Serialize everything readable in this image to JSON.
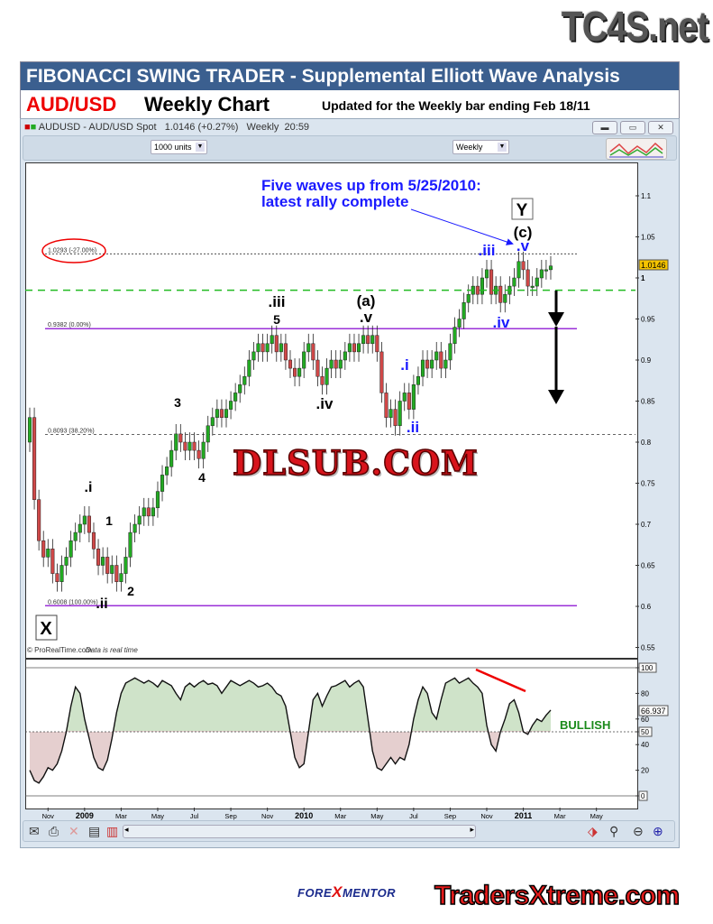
{
  "logo_top": "TC4S.net",
  "header": {
    "title": "FIBONACCI SWING TRADER - Supplemental Elliott Wave Analysis",
    "pair": "AUD/USD",
    "chart_type": "Weekly Chart",
    "updated": "Updated for the Weekly bar ending Feb 18/11"
  },
  "window": {
    "title": "AUDUSD - AUD/USD Spot   1.0146 (+0.27%)   Weekly  20:59",
    "units_select": "1000 units",
    "period_select": "Weekly",
    "credit": "© ProRealTime.com",
    "credit_note": "Data is real time",
    "icons": [
      "candlestick-icon",
      "minimize-icon",
      "restore-icon",
      "close-icon",
      "indicators-icon",
      "mail-icon",
      "print-icon",
      "delete-icon",
      "export-icon",
      "compare-icon",
      "scroll-left-icon",
      "scroll-right-icon",
      "cursor-icon",
      "zoom-fit-icon",
      "zoom-out-icon",
      "zoom-in-icon"
    ]
  },
  "footer": {
    "brand1_a": "FORE",
    "brand1_x": "X",
    "brand1_b": "MENTOR",
    "brand2": "TradersXtreme.com"
  },
  "watermark": "DLSUB.COM",
  "colors": {
    "up": "#22aa22",
    "down": "#d04848",
    "fib_purple": "#9b30d8",
    "support_green": "#22bb22",
    "wave_blue": "#1a1aff",
    "bullish": "#1a8a1a"
  },
  "chart_data": [
    {
      "type": "candlestick",
      "title": "AUDUSD - AUD/USD Spot",
      "period": "Weekly",
      "x_range": [
        "Oct 2008",
        "May 2011"
      ],
      "x_tick_labels": [
        "Nov",
        "2009",
        "Mar",
        "May",
        "Jul",
        "Sep",
        "Nov",
        "2010",
        "Mar",
        "May",
        "Jul",
        "Sep",
        "Nov",
        "2011",
        "Mar",
        "May"
      ],
      "y_tick_labels": [
        "1.1",
        "1.05",
        "1",
        "0.95",
        "0.9",
        "0.85",
        "0.8",
        "0.75",
        "0.7",
        "0.65",
        "0.6",
        "0.55"
      ],
      "ylim": [
        0.535,
        1.135
      ],
      "last_price": "1.0146",
      "closes": [
        0.83,
        0.73,
        0.68,
        0.66,
        0.67,
        0.64,
        0.63,
        0.65,
        0.66,
        0.68,
        0.69,
        0.7,
        0.71,
        0.69,
        0.67,
        0.65,
        0.66,
        0.64,
        0.65,
        0.63,
        0.64,
        0.66,
        0.69,
        0.7,
        0.71,
        0.72,
        0.71,
        0.72,
        0.74,
        0.76,
        0.77,
        0.79,
        0.81,
        0.8,
        0.79,
        0.8,
        0.79,
        0.78,
        0.8,
        0.82,
        0.83,
        0.84,
        0.83,
        0.84,
        0.85,
        0.86,
        0.87,
        0.88,
        0.9,
        0.91,
        0.92,
        0.91,
        0.92,
        0.93,
        0.91,
        0.92,
        0.9,
        0.89,
        0.88,
        0.89,
        0.91,
        0.92,
        0.9,
        0.88,
        0.87,
        0.89,
        0.9,
        0.89,
        0.9,
        0.91,
        0.92,
        0.91,
        0.92,
        0.93,
        0.92,
        0.93,
        0.91,
        0.86,
        0.83,
        0.84,
        0.82,
        0.85,
        0.86,
        0.84,
        0.87,
        0.88,
        0.9,
        0.89,
        0.9,
        0.91,
        0.89,
        0.9,
        0.92,
        0.94,
        0.95,
        0.97,
        0.98,
        0.99,
        0.98,
        1.0,
        1.01,
        0.98,
        0.99,
        0.97,
        0.98,
        0.99,
        1.0,
        1.02,
        1.01,
        0.99,
        0.99,
        1.0,
        1.01,
        1.01,
        1.0146
      ],
      "fib_levels": [
        {
          "value": 1.0293,
          "label": "1.0293 (-27.00%)",
          "style": "dotted",
          "circled": true
        },
        {
          "value": 0.9382,
          "label": "0.9382 (0.00%)",
          "style": "solid-purple"
        },
        {
          "value": 0.8093,
          "label": "0.8093 (38.20%)",
          "style": "dashed"
        },
        {
          "value": 0.6008,
          "label": "0.6008 (100.00%)",
          "style": "solid-purple"
        }
      ],
      "support_line": 0.985,
      "annotation_headline": [
        "Five waves up from 5/25/2010:",
        "latest rally complete"
      ],
      "wave_labels": [
        ".i",
        "1",
        "2",
        ".ii",
        "3",
        "4",
        ".iii",
        "5",
        ".iv",
        "(a)",
        ".v",
        ".i",
        ".ii",
        ".iii",
        ".iv",
        "(c)",
        ".v",
        "Y",
        "X"
      ]
    },
    {
      "type": "line",
      "y_tick_labels": [
        "100",
        "80",
        "60",
        "50",
        "40",
        "20",
        "0"
      ],
      "ylim": [
        0,
        100
      ],
      "threshold": 50,
      "last_value": "66.937",
      "signal_label": "BULLISH",
      "values": [
        20,
        12,
        10,
        15,
        22,
        20,
        25,
        35,
        50,
        70,
        85,
        80,
        60,
        45,
        30,
        22,
        20,
        28,
        45,
        65,
        80,
        88,
        90,
        92,
        90,
        88,
        90,
        88,
        85,
        90,
        88,
        86,
        80,
        75,
        85,
        88,
        85,
        88,
        90,
        87,
        88,
        86,
        80,
        85,
        90,
        88,
        86,
        88,
        90,
        88,
        85,
        86,
        88,
        85,
        80,
        78,
        70,
        50,
        30,
        22,
        25,
        50,
        75,
        80,
        70,
        78,
        85,
        86,
        88,
        90,
        85,
        88,
        90,
        85,
        60,
        35,
        22,
        20,
        25,
        30,
        25,
        30,
        28,
        40,
        60,
        75,
        85,
        80,
        65,
        60,
        75,
        88,
        90,
        92,
        88,
        90,
        92,
        88,
        85,
        80,
        55,
        40,
        35,
        50,
        60,
        72,
        75,
        65,
        50,
        48,
        55,
        60,
        58,
        63,
        66.937
      ]
    }
  ]
}
